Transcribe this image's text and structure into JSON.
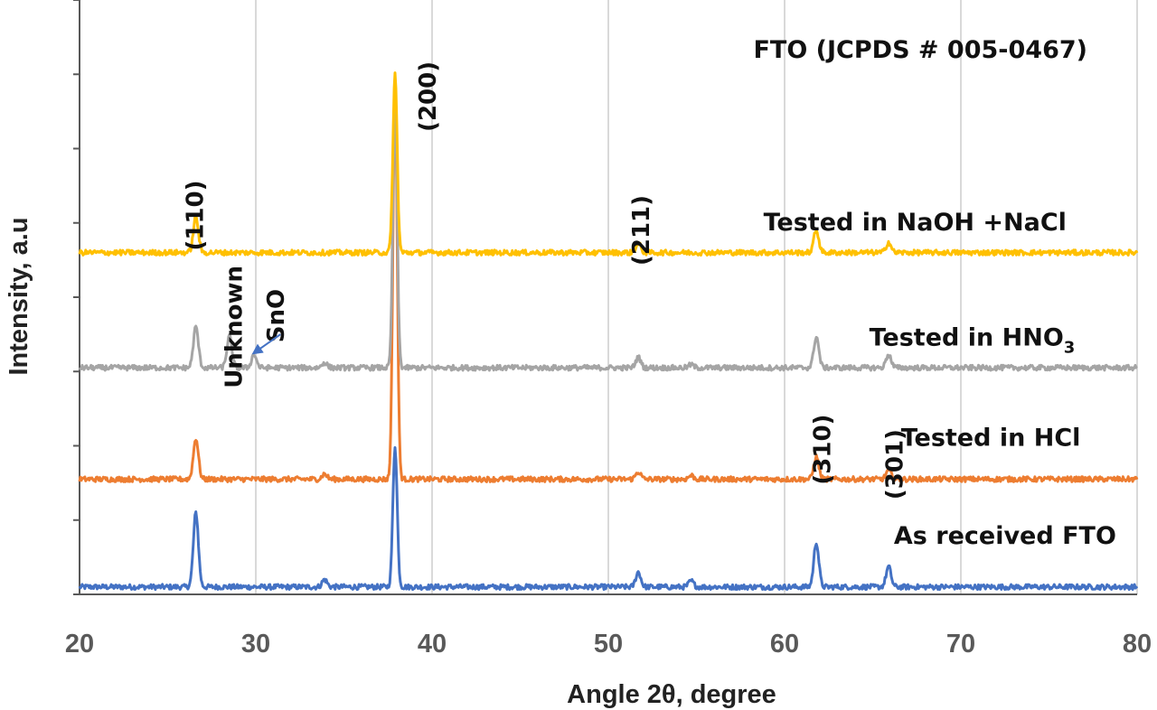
{
  "chart_data": {
    "type": "line",
    "title": "FTO (JCPDS # 005-0467)",
    "xlabel": "Angle 2θ, degree",
    "ylabel": "Intensity, a.u",
    "xlim": [
      20,
      80
    ],
    "x_ticks": [
      "20",
      "30",
      "40",
      "50",
      "60",
      "70",
      "80"
    ],
    "ylim": [
      0,
      8
    ],
    "y_ticks": [
      0,
      1,
      2,
      3,
      4,
      5,
      6,
      7,
      8
    ],
    "y_tick_labels_shown": false,
    "grid": true,
    "legend": "none",
    "series": [
      {
        "name": "As received FTO",
        "color": "#4472C4",
        "offset": 0.1,
        "peaks": [
          [
            26.6,
            1.0
          ],
          [
            33.9,
            0.1
          ],
          [
            37.9,
            1.9
          ],
          [
            51.7,
            0.2
          ],
          [
            54.7,
            0.08
          ],
          [
            61.8,
            0.6
          ],
          [
            65.9,
            0.27
          ]
        ]
      },
      {
        "name": "Tested in HCl",
        "color": "#ED7D31",
        "offset": 1.55,
        "peaks": [
          [
            26.6,
            0.55
          ],
          [
            33.9,
            0.07
          ],
          [
            37.9,
            5.3
          ],
          [
            51.7,
            0.1
          ],
          [
            54.7,
            0.05
          ],
          [
            61.8,
            0.3
          ],
          [
            65.9,
            0.12
          ]
        ]
      },
      {
        "name": "Tested in HNO₃",
        "color": "#A5A5A5",
        "offset": 3.05,
        "peaks": [
          [
            26.6,
            0.55
          ],
          [
            28.5,
            0.42
          ],
          [
            29.9,
            0.18
          ],
          [
            33.9,
            0.07
          ],
          [
            37.9,
            3.6
          ],
          [
            51.7,
            0.14
          ],
          [
            54.7,
            0.04
          ],
          [
            61.8,
            0.42
          ],
          [
            65.9,
            0.18
          ]
        ]
      },
      {
        "name": "Tested in NaOH +NaCl",
        "color": "#FFC000",
        "offset": 4.6,
        "peaks": [
          [
            26.6,
            0.48
          ],
          [
            37.9,
            2.4
          ],
          [
            51.7,
            0.12
          ],
          [
            61.8,
            0.3
          ],
          [
            65.9,
            0.14
          ]
        ]
      }
    ],
    "series_labels": [
      {
        "text": "As received FTO",
        "x": 66.2,
        "y": 0.68
      },
      {
        "text": "Tested in HCl",
        "x": 66.6,
        "y": 2.0
      },
      {
        "text": "Tested in HNO",
        "subscript": "3",
        "x": 64.8,
        "y": 3.35
      },
      {
        "text": "Tested in NaOH +NaCl",
        "x": 58.8,
        "y": 4.9
      }
    ],
    "annotations": [
      {
        "text": "(110)",
        "x": 27.0,
        "y": 5.1,
        "rotate": -90
      },
      {
        "text": "Unknown",
        "x": 29.2,
        "y": 3.6,
        "rotate": -90
      },
      {
        "text": "SnO",
        "x": 31.6,
        "y": 3.75,
        "rotate": -90
      },
      {
        "text": "(200)",
        "x": 40.2,
        "y": 6.7,
        "rotate": -90
      },
      {
        "text": "(211)",
        "x": 52.3,
        "y": 4.9,
        "rotate": -90
      },
      {
        "text": "(310)",
        "x": 62.6,
        "y": 1.95,
        "rotate": -90
      },
      {
        "text": "(301)",
        "x": 66.7,
        "y": 1.75,
        "rotate": -90
      }
    ],
    "arrow": {
      "label": "SnO",
      "from": [
        31.4,
        3.5
      ],
      "to": [
        29.9,
        3.25
      ],
      "color": "#4472C4"
    }
  }
}
